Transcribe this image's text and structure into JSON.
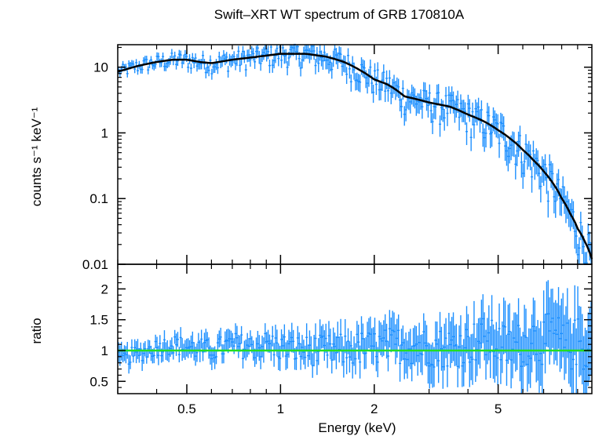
{
  "chart_data": [
    {
      "type": "scatter",
      "title": "Swift–XRT WT spectrum of GRB 170810A",
      "ylabel": "counts s⁻¹ keV⁻¹",
      "xscale": "log",
      "yscale": "log",
      "xlim": [
        0.3,
        10
      ],
      "ylim": [
        0.01,
        22
      ],
      "y_ticks": [
        0.01,
        0.1,
        1,
        10
      ],
      "y_tick_labels": [
        "0.01",
        "0.1",
        "1",
        "10"
      ],
      "colors": {
        "data": "#1e90ff",
        "model": "#000000"
      },
      "series": [
        {
          "x": [
            0.3,
            0.35,
            0.4,
            0.45,
            0.5,
            0.55,
            0.6,
            0.7,
            0.8,
            0.9,
            1.0,
            1.2,
            1.4,
            1.6,
            1.8,
            2.0,
            2.2,
            2.5,
            3.0,
            3.5,
            4.0,
            4.5,
            5.0,
            5.5,
            6.0,
            6.5,
            7.0,
            7.5,
            8.0,
            8.5,
            9.0,
            9.5,
            10.0
          ],
          "y": [
            8.5,
            10.5,
            12.0,
            13.0,
            13.0,
            12.0,
            11.5,
            13.0,
            14.0,
            15.0,
            16.0,
            16.0,
            14.5,
            12.0,
            9.0,
            6.5,
            5.5,
            3.6,
            2.9,
            2.5,
            1.9,
            1.5,
            1.1,
            0.8,
            0.55,
            0.38,
            0.26,
            0.17,
            0.1,
            0.06,
            0.035,
            0.022,
            0.012
          ]
        }
      ]
    },
    {
      "type": "scatter",
      "xlabel": "Energy (keV)",
      "ylabel": "ratio",
      "xscale": "log",
      "xlim": [
        0.3,
        10
      ],
      "ylim": [
        0.3,
        2.4
      ],
      "x_ticks": [
        0.5,
        1,
        2,
        5
      ],
      "x_tick_labels": [
        "0.5",
        "1",
        "2",
        "5"
      ],
      "y_ticks": [
        0.5,
        1,
        1.5,
        2
      ],
      "y_tick_labels": [
        "0.5",
        "1",
        "1.5",
        "2"
      ],
      "reference_line": 1,
      "colors": {
        "data": "#1e90ff",
        "reference": "#22dd22"
      },
      "series": [
        {
          "x": [
            0.3,
            0.35,
            0.4,
            0.45,
            0.5,
            0.6,
            0.7,
            0.8,
            0.9,
            1.0,
            1.2,
            1.5,
            2.0,
            2.5,
            3.0,
            3.5,
            4.0,
            4.5,
            5.0,
            5.5,
            6.0,
            6.5,
            7.0,
            7.5,
            8.0,
            8.5,
            9.0,
            9.5
          ],
          "y": [
            0.85,
            0.95,
            1.05,
            1.1,
            1.05,
            1.0,
            1.1,
            1.05,
            1.1,
            1.05,
            1.0,
            1.0,
            1.05,
            1.1,
            1.05,
            1.05,
            1.1,
            1.2,
            1.1,
            1.05,
            1.1,
            1.2,
            1.15,
            1.3,
            1.1,
            1.05,
            1.15,
            1.0
          ]
        }
      ]
    }
  ]
}
